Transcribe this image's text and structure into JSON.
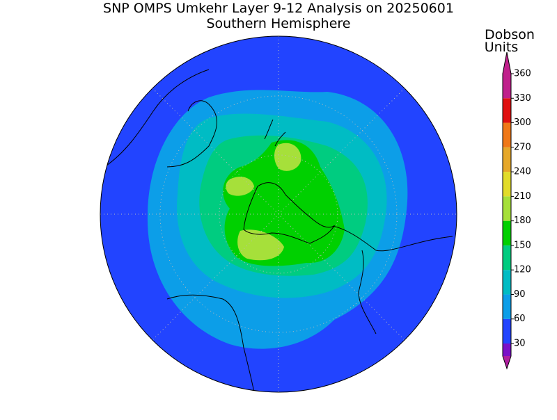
{
  "title": "SNP OMPS Umkehr Layer 9-12 Analysis on 20250601",
  "subtitle": "Southern Hemisphere",
  "colorbar": {
    "label": [
      "Dobson",
      "Units"
    ],
    "ticks": [
      30,
      60,
      90,
      120,
      150,
      180,
      210,
      240,
      270,
      300,
      330,
      360
    ],
    "colors": [
      "#b01ea0",
      "#7a10c8",
      "#2244ff",
      "#0c9ee8",
      "#00bcc4",
      "#00cc80",
      "#00d000",
      "#a6e03a",
      "#e2dc2a",
      "#e6a82a",
      "#f07818",
      "#e01010",
      "#c0208c"
    ]
  }
}
